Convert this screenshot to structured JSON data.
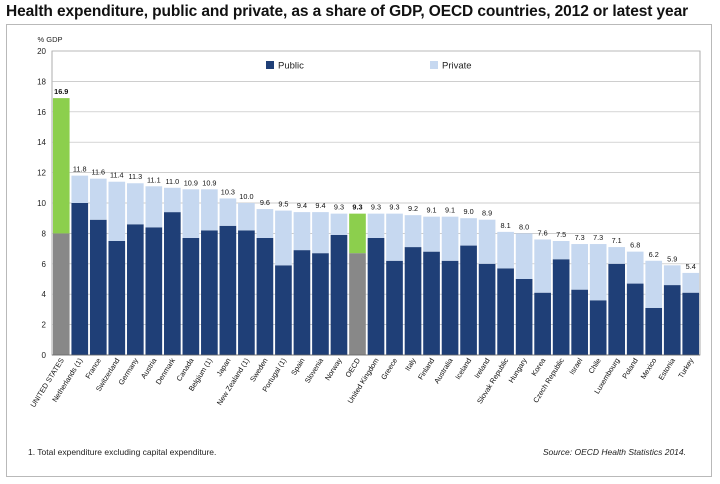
{
  "title": "Health expenditure, public and private, as a share of GDP, OECD countries, 2012 or latest year",
  "footnote": "1. Total expenditure excluding capital expenditure.",
  "source": "Source: OECD Health Statistics 2014.",
  "colors": {
    "public": "#1f3f77",
    "private": "#c6d8f0",
    "us_public": "#888888",
    "us_private": "#8ccf4d",
    "oecd_public": "#888888",
    "oecd_private": "#8ccf4d"
  },
  "chart_data": {
    "type": "bar",
    "stacked": true,
    "ylabel": "% GDP",
    "ylim": [
      0,
      20
    ],
    "yticks": [
      0,
      2,
      4,
      6,
      8,
      10,
      12,
      14,
      16,
      18,
      20
    ],
    "grid": true,
    "legend_position": "top-center",
    "categories": [
      "UNITED STATES",
      "Netherlands (1)",
      "France",
      "Switzerland",
      "Germany",
      "Austria",
      "Denmark",
      "Canada",
      "Belgium (1)",
      "Japan",
      "New Zealand (1)",
      "Sweden",
      "Portugal (1)",
      "Spain",
      "Slovenia",
      "Norway",
      "OECD",
      "United Kingdom",
      "Greece",
      "Italy",
      "Finland",
      "Australia",
      "Iceland",
      "Ireland",
      "Slovak Republic",
      "Hungary",
      "Korea",
      "Czech Republic",
      "Israel",
      "Chile",
      "Luxembourg",
      "Poland",
      "Mexico",
      "Estonia",
      "Turkey"
    ],
    "totals": [
      16.9,
      11.8,
      11.6,
      11.4,
      11.3,
      11.1,
      11.0,
      10.9,
      10.9,
      10.3,
      10.0,
      9.6,
      9.5,
      9.4,
      9.4,
      9.3,
      9.3,
      9.3,
      9.3,
      9.2,
      9.1,
      9.1,
      9.0,
      8.9,
      8.1,
      8.0,
      7.6,
      7.5,
      7.3,
      7.3,
      7.1,
      6.8,
      6.2,
      5.9,
      5.4
    ],
    "total_labels": [
      "16.9",
      "11.8",
      "11.6",
      "11.4",
      "11.3",
      "11.1",
      "11.0",
      "10.9",
      "10.9",
      "10.3",
      "10.0",
      "9.6",
      "9.5",
      "9.4",
      "9.4",
      "9.3",
      "9.3",
      "9.3",
      "9.3",
      "9.2",
      "9.1",
      "9.1",
      "9.0",
      "8.9",
      "8.1",
      "8.0",
      "7.6",
      "7.5",
      "7.3",
      "7.3",
      "7.1",
      "6.8",
      "6.2",
      "5.9",
      "5.4"
    ],
    "highlight": [
      "UNITED STATES",
      "OECD"
    ],
    "series": [
      {
        "name": "Public",
        "values": [
          8.0,
          10.0,
          8.9,
          7.5,
          8.6,
          8.4,
          9.4,
          7.7,
          8.2,
          8.5,
          8.2,
          7.7,
          5.9,
          6.9,
          6.7,
          7.9,
          6.7,
          7.7,
          6.2,
          7.1,
          6.8,
          6.2,
          7.2,
          6.0,
          5.7,
          5.0,
          4.1,
          6.3,
          4.3,
          3.6,
          6.0,
          4.7,
          3.1,
          4.6,
          4.1
        ]
      },
      {
        "name": "Private",
        "values": [
          8.9,
          1.8,
          2.7,
          3.9,
          2.7,
          2.7,
          1.6,
          3.2,
          2.7,
          1.8,
          1.8,
          1.9,
          3.6,
          2.5,
          2.7,
          1.4,
          2.6,
          1.6,
          3.1,
          2.1,
          2.3,
          2.9,
          1.8,
          2.9,
          2.4,
          3.0,
          3.5,
          1.2,
          3.0,
          3.7,
          1.1,
          2.1,
          3.1,
          1.3,
          1.3
        ]
      }
    ]
  }
}
